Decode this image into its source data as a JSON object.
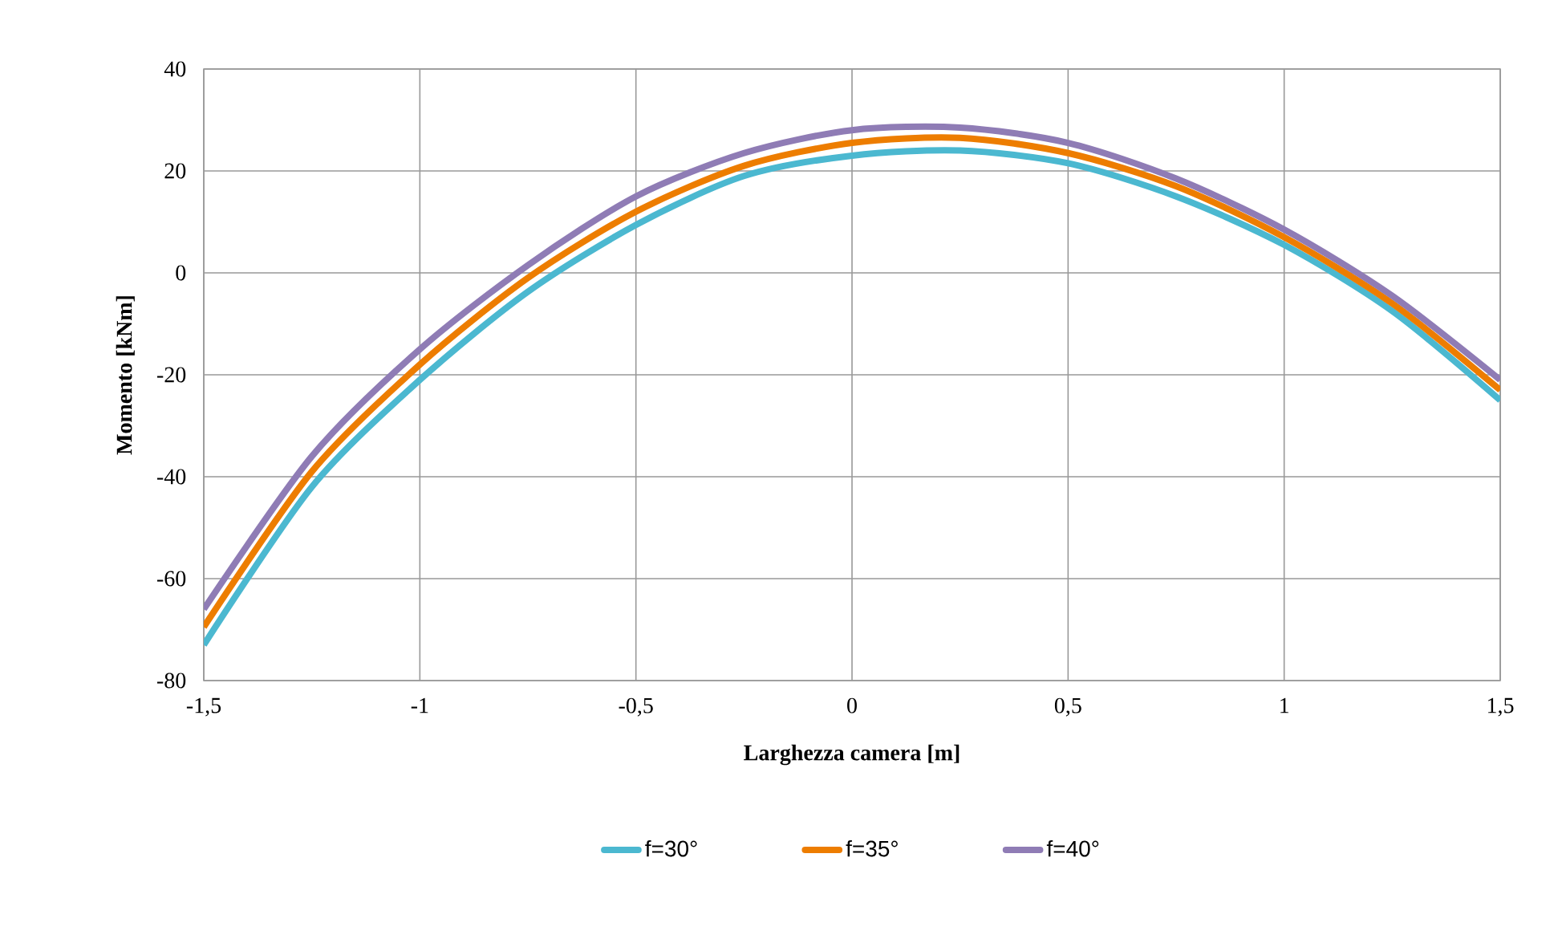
{
  "chart_data": {
    "type": "line",
    "xlabel": "Larghezza camera [m]",
    "ylabel": "Momento [kNm]",
    "x": [
      -1.5,
      -1.25,
      -1.0,
      -0.75,
      -0.5,
      -0.25,
      0.0,
      0.25,
      0.5,
      0.75,
      1.0,
      1.25,
      1.5
    ],
    "series": [
      {
        "name": "f=30°",
        "color": "#4bb8d0",
        "values": [
          -73,
          -42,
          -21,
          -3.7,
          9.4,
          19,
          23,
          24,
          21.5,
          15,
          5.5,
          -7.5,
          -25
        ]
      },
      {
        "name": "f=35°",
        "color": "#ed7d00",
        "values": [
          -69.5,
          -39,
          -18,
          -1,
          12,
          21,
          25.5,
          26.5,
          23.5,
          17,
          7,
          -6,
          -23
        ]
      },
      {
        "name": "f=40°",
        "color": "#8f7cb5",
        "values": [
          -66,
          -36,
          -15,
          1.5,
          15,
          23.5,
          28,
          28.5,
          25.5,
          18.5,
          8.5,
          -4.5,
          -21
        ]
      }
    ],
    "xlim": [
      -1.5,
      1.5
    ],
    "ylim": [
      -80,
      40
    ],
    "xticks": [
      {
        "value": -1.5,
        "label": "-1,5"
      },
      {
        "value": -1,
        "label": "-1"
      },
      {
        "value": -0.5,
        "label": "-0,5"
      },
      {
        "value": 0,
        "label": "0"
      },
      {
        "value": 0.5,
        "label": "0,5"
      },
      {
        "value": 1,
        "label": "1"
      },
      {
        "value": 1.5,
        "label": "1,5"
      }
    ],
    "yticks": [
      -80,
      -60,
      -40,
      -20,
      0,
      20,
      40
    ],
    "grid": true,
    "legend": "bottom",
    "line_style": "solid",
    "marker": "none"
  }
}
